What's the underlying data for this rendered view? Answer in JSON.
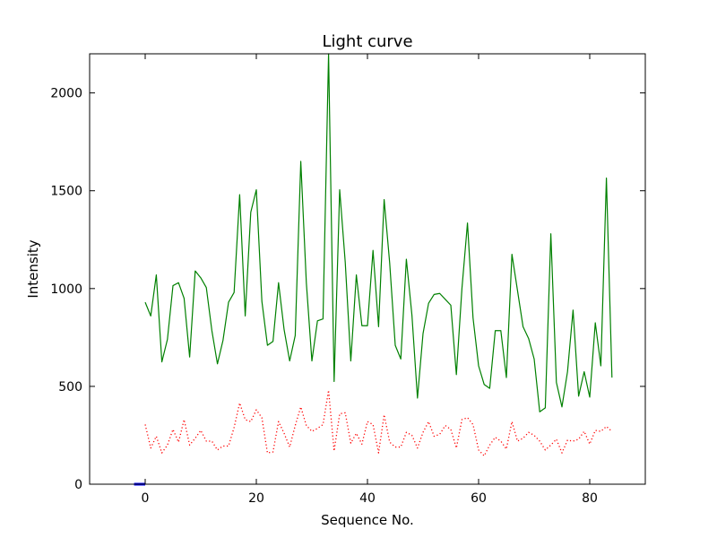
{
  "chart_data": {
    "type": "line",
    "title": "Light curve",
    "xlabel": "Sequence No.",
    "ylabel": "Intensity",
    "xlim": [
      -10,
      90
    ],
    "ylim": [
      0,
      2200
    ],
    "xticks": [
      0,
      20,
      40,
      60,
      80
    ],
    "yticks": [
      0,
      500,
      1000,
      1500,
      2000
    ],
    "grid": false,
    "series": [
      {
        "color": "#008000",
        "style": "solid",
        "x": [
          0,
          1,
          2,
          3,
          4,
          5,
          6,
          7,
          8,
          9,
          10,
          11,
          12,
          13,
          14,
          15,
          16,
          17,
          18,
          19,
          20,
          21,
          22,
          23,
          24,
          25,
          26,
          27,
          28,
          29,
          30,
          31,
          32,
          33,
          34,
          35,
          36,
          37,
          38,
          39,
          40,
          41,
          42,
          43,
          44,
          45,
          46,
          47,
          48,
          49,
          50,
          51,
          52,
          53,
          54,
          55,
          56,
          57,
          58,
          59,
          60,
          61,
          62,
          63,
          64,
          65,
          66,
          67,
          68,
          69,
          70,
          71,
          72,
          73,
          74,
          75,
          76,
          77,
          78,
          79,
          80,
          81,
          82,
          83,
          84
        ],
        "values": [
          930,
          860,
          1070,
          625,
          740,
          1015,
          1030,
          950,
          650,
          1090,
          1055,
          1005,
          785,
          615,
          735,
          930,
          980,
          1480,
          860,
          1390,
          1505,
          935,
          710,
          730,
          1030,
          790,
          630,
          760,
          1650,
          1030,
          630,
          835,
          845,
          2200,
          525,
          1505,
          1135,
          630,
          1070,
          810,
          810,
          1195,
          805,
          1455,
          1130,
          710,
          640,
          1150,
          865,
          440,
          770,
          925,
          970,
          975,
          945,
          915,
          560,
          1000,
          1335,
          850,
          605,
          510,
          490,
          785,
          785,
          545,
          1175,
          990,
          805,
          745,
          640,
          370,
          390,
          1280,
          520,
          395,
          575,
          890,
          450,
          575,
          445,
          825,
          605,
          1565,
          545
        ]
      },
      {
        "color": "#ff0000",
        "style": "dotted",
        "x": [
          0,
          1,
          2,
          3,
          4,
          5,
          6,
          7,
          8,
          9,
          10,
          11,
          12,
          13,
          14,
          15,
          16,
          17,
          18,
          19,
          20,
          21,
          22,
          23,
          24,
          25,
          26,
          27,
          28,
          29,
          30,
          31,
          32,
          33,
          34,
          35,
          36,
          37,
          38,
          39,
          40,
          41,
          42,
          43,
          44,
          45,
          46,
          47,
          48,
          49,
          50,
          51,
          52,
          53,
          54,
          55,
          56,
          57,
          58,
          59,
          60,
          61,
          62,
          63,
          64,
          65,
          66,
          67,
          68,
          69,
          70,
          71,
          72,
          73,
          74,
          75,
          76,
          77,
          78,
          79,
          80,
          81,
          82,
          83,
          84
        ],
        "values": [
          305,
          185,
          245,
          160,
          200,
          280,
          215,
          330,
          200,
          235,
          275,
          220,
          220,
          175,
          195,
          195,
          290,
          415,
          330,
          320,
          380,
          340,
          160,
          165,
          320,
          260,
          190,
          300,
          395,
          300,
          270,
          285,
          305,
          480,
          170,
          360,
          365,
          210,
          260,
          205,
          320,
          305,
          160,
          355,
          215,
          190,
          190,
          265,
          250,
          185,
          265,
          320,
          245,
          255,
          300,
          280,
          185,
          330,
          340,
          305,
          175,
          145,
          200,
          240,
          220,
          180,
          320,
          220,
          235,
          265,
          250,
          220,
          175,
          200,
          230,
          160,
          225,
          220,
          230,
          270,
          205,
          275,
          270,
          295,
          270
        ]
      },
      {
        "color": "#0000ff",
        "style": "solid",
        "x": [
          -2,
          -1,
          0
        ],
        "values": [
          0,
          0,
          0
        ]
      }
    ]
  }
}
